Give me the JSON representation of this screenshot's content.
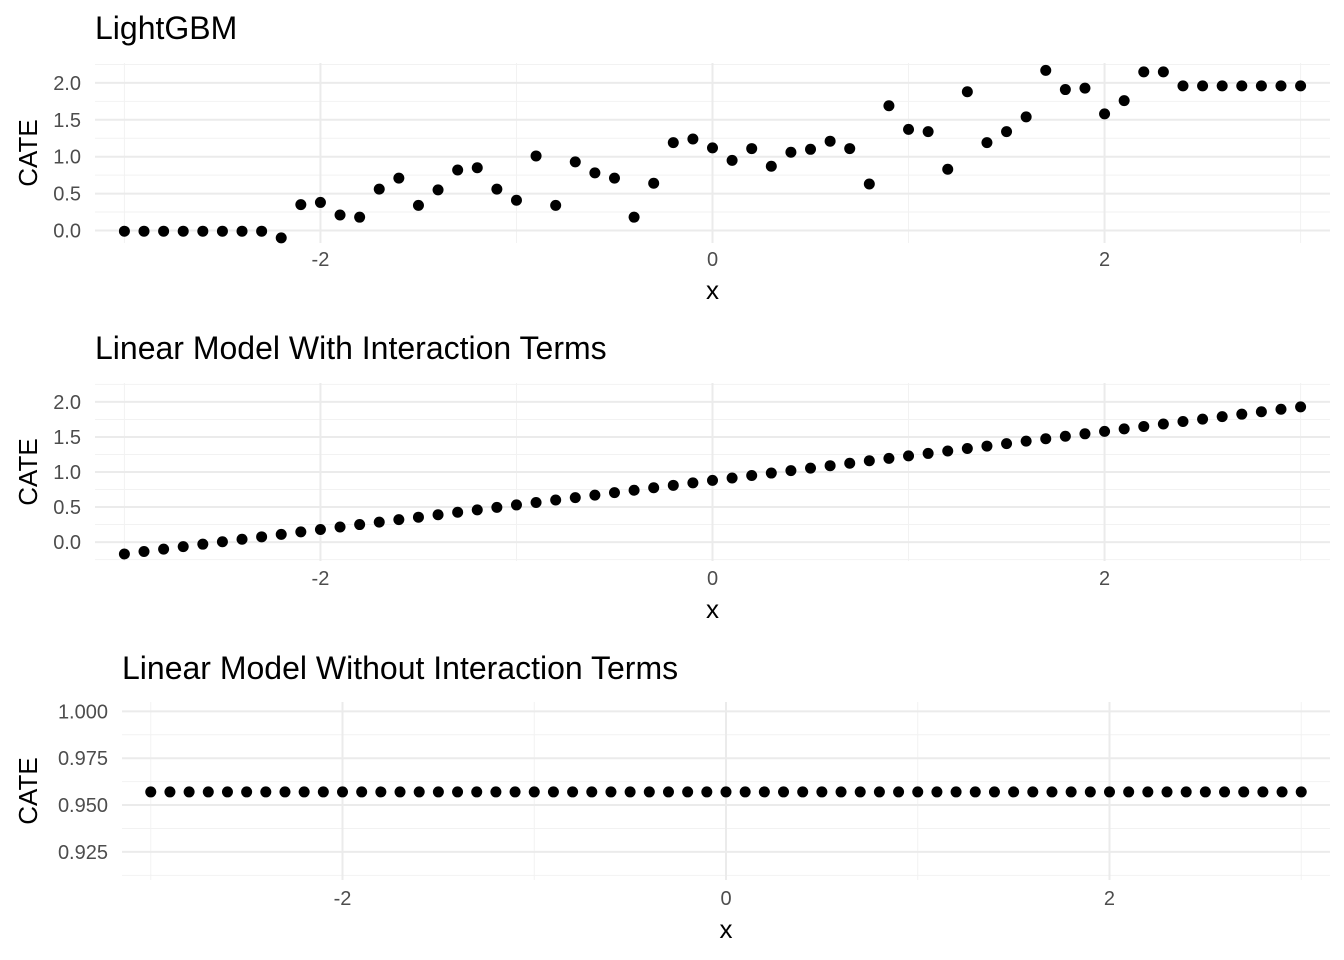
{
  "chart_data": [
    {
      "type": "scatter",
      "title": "LightGBM",
      "xlabel": "x",
      "ylabel": "CATE",
      "xlim": [
        -3.15,
        3.15
      ],
      "ylim": [
        -0.17,
        2.27
      ],
      "x_ticks": [
        -2,
        0,
        2
      ],
      "x_tick_labels": [
        "-2",
        "0",
        "2"
      ],
      "y_ticks": [
        0,
        0.5,
        1,
        1.5,
        2
      ],
      "y_tick_labels": [
        "0.0",
        "0.5",
        "1.0",
        "1.5",
        "2.0"
      ],
      "grid": true,
      "legend": "none",
      "x": [
        -3.0,
        -2.9,
        -2.8,
        -2.7,
        -2.6,
        -2.5,
        -2.4,
        -2.3,
        -2.2,
        -2.1,
        -2.0,
        -1.9,
        -1.8,
        -1.7,
        -1.6,
        -1.5,
        -1.4,
        -1.3,
        -1.2,
        -1.1,
        -1.0,
        -0.9,
        -0.8,
        -0.7,
        -0.6,
        -0.5,
        -0.4,
        -0.3,
        -0.2,
        -0.1,
        0.0,
        0.1,
        0.2,
        0.3,
        0.4,
        0.5,
        0.6,
        0.7,
        0.8,
        0.9,
        1.0,
        1.1,
        1.2,
        1.3,
        1.4,
        1.5,
        1.6,
        1.7,
        1.8,
        1.9,
        2.0,
        2.1,
        2.2,
        2.3,
        2.4,
        2.5,
        2.6,
        2.7,
        2.8,
        2.9,
        3.0
      ],
      "y": [
        -0.01,
        -0.01,
        -0.01,
        -0.01,
        -0.01,
        -0.01,
        -0.01,
        -0.01,
        -0.1,
        0.35,
        0.38,
        0.21,
        0.18,
        0.56,
        0.71,
        0.34,
        0.55,
        0.82,
        0.85,
        0.56,
        0.41,
        1.01,
        0.34,
        0.93,
        0.78,
        0.71,
        0.18,
        0.64,
        1.19,
        1.24,
        1.12,
        0.95,
        1.11,
        0.87,
        1.06,
        1.1,
        1.21,
        1.11,
        0.63,
        1.69,
        1.37,
        1.34,
        0.83,
        1.88,
        1.19,
        1.34,
        1.54,
        2.17,
        1.91,
        1.93,
        1.58,
        1.76,
        2.15,
        2.15,
        1.96,
        1.96,
        1.96,
        1.96,
        1.96,
        1.96,
        1.96
      ]
    },
    {
      "type": "scatter",
      "title": "Linear Model With Interaction Terms",
      "xlabel": "x",
      "ylabel": "CATE",
      "xlim": [
        -3.15,
        3.15
      ],
      "ylim": [
        -0.27,
        2.27
      ],
      "x_ticks": [
        -2,
        0,
        2
      ],
      "x_tick_labels": [
        "-2",
        "0",
        "2"
      ],
      "y_ticks": [
        0,
        0.5,
        1,
        1.5,
        2
      ],
      "y_tick_labels": [
        "0.0",
        "0.5",
        "1.0",
        "1.5",
        "2.0"
      ],
      "grid": true,
      "legend": "none",
      "x": [
        -3.0,
        -2.9,
        -2.8,
        -2.7,
        -2.6,
        -2.5,
        -2.4,
        -2.3,
        -2.2,
        -2.1,
        -2.0,
        -1.9,
        -1.8,
        -1.7,
        -1.6,
        -1.5,
        -1.4,
        -1.3,
        -1.2,
        -1.1,
        -1.0,
        -0.9,
        -0.8,
        -0.7,
        -0.6,
        -0.5,
        -0.4,
        -0.3,
        -0.2,
        -0.1,
        0.0,
        0.1,
        0.2,
        0.3,
        0.4,
        0.5,
        0.6,
        0.7,
        0.8,
        0.9,
        1.0,
        1.1,
        1.2,
        1.3,
        1.4,
        1.5,
        1.6,
        1.7,
        1.8,
        1.9,
        2.0,
        2.1,
        2.2,
        2.3,
        2.4,
        2.5,
        2.6,
        2.7,
        2.8,
        2.9,
        3.0
      ],
      "y": [
        -0.17,
        -0.135,
        -0.1,
        -0.065,
        -0.03,
        0.005,
        0.04,
        0.075,
        0.11,
        0.145,
        0.18,
        0.215,
        0.25,
        0.285,
        0.32,
        0.355,
        0.39,
        0.425,
        0.46,
        0.495,
        0.53,
        0.565,
        0.6,
        0.635,
        0.67,
        0.705,
        0.74,
        0.775,
        0.81,
        0.845,
        0.88,
        0.915,
        0.95,
        0.985,
        1.02,
        1.055,
        1.09,
        1.125,
        1.16,
        1.195,
        1.23,
        1.265,
        1.3,
        1.335,
        1.37,
        1.405,
        1.44,
        1.475,
        1.51,
        1.545,
        1.58,
        1.615,
        1.65,
        1.685,
        1.72,
        1.755,
        1.79,
        1.825,
        1.86,
        1.895,
        1.93
      ]
    },
    {
      "type": "scatter",
      "title": "Linear Model Without Interaction Terms",
      "xlabel": "x",
      "ylabel": "CATE",
      "xlim": [
        -3.15,
        3.15
      ],
      "ylim": [
        0.91,
        1.005
      ],
      "x_ticks": [
        -2,
        0,
        2
      ],
      "x_tick_labels": [
        "-2",
        "0",
        "2"
      ],
      "y_ticks": [
        0.925,
        0.95,
        0.975,
        1.0
      ],
      "y_tick_labels": [
        "0.925",
        "0.950",
        "0.975",
        "1.000"
      ],
      "grid": true,
      "legend": "none",
      "x": [
        -3.0,
        -2.9,
        -2.8,
        -2.7,
        -2.6,
        -2.5,
        -2.4,
        -2.3,
        -2.2,
        -2.1,
        -2.0,
        -1.9,
        -1.8,
        -1.7,
        -1.6,
        -1.5,
        -1.4,
        -1.3,
        -1.2,
        -1.1,
        -1.0,
        -0.9,
        -0.8,
        -0.7,
        -0.6,
        -0.5,
        -0.4,
        -0.3,
        -0.2,
        -0.1,
        0.0,
        0.1,
        0.2,
        0.3,
        0.4,
        0.5,
        0.6,
        0.7,
        0.8,
        0.9,
        1.0,
        1.1,
        1.2,
        1.3,
        1.4,
        1.5,
        1.6,
        1.7,
        1.8,
        1.9,
        2.0,
        2.1,
        2.2,
        2.3,
        2.4,
        2.5,
        2.6,
        2.7,
        2.8,
        2.9,
        3.0
      ],
      "y": [
        0.957,
        0.957,
        0.957,
        0.957,
        0.957,
        0.957,
        0.957,
        0.957,
        0.957,
        0.957,
        0.957,
        0.957,
        0.957,
        0.957,
        0.957,
        0.957,
        0.957,
        0.957,
        0.957,
        0.957,
        0.957,
        0.957,
        0.957,
        0.957,
        0.957,
        0.957,
        0.957,
        0.957,
        0.957,
        0.957,
        0.957,
        0.957,
        0.957,
        0.957,
        0.957,
        0.957,
        0.957,
        0.957,
        0.957,
        0.957,
        0.957,
        0.957,
        0.957,
        0.957,
        0.957,
        0.957,
        0.957,
        0.957,
        0.957,
        0.957,
        0.957,
        0.957,
        0.957,
        0.957,
        0.957,
        0.957,
        0.957,
        0.957,
        0.957,
        0.957,
        0.957
      ]
    }
  ]
}
